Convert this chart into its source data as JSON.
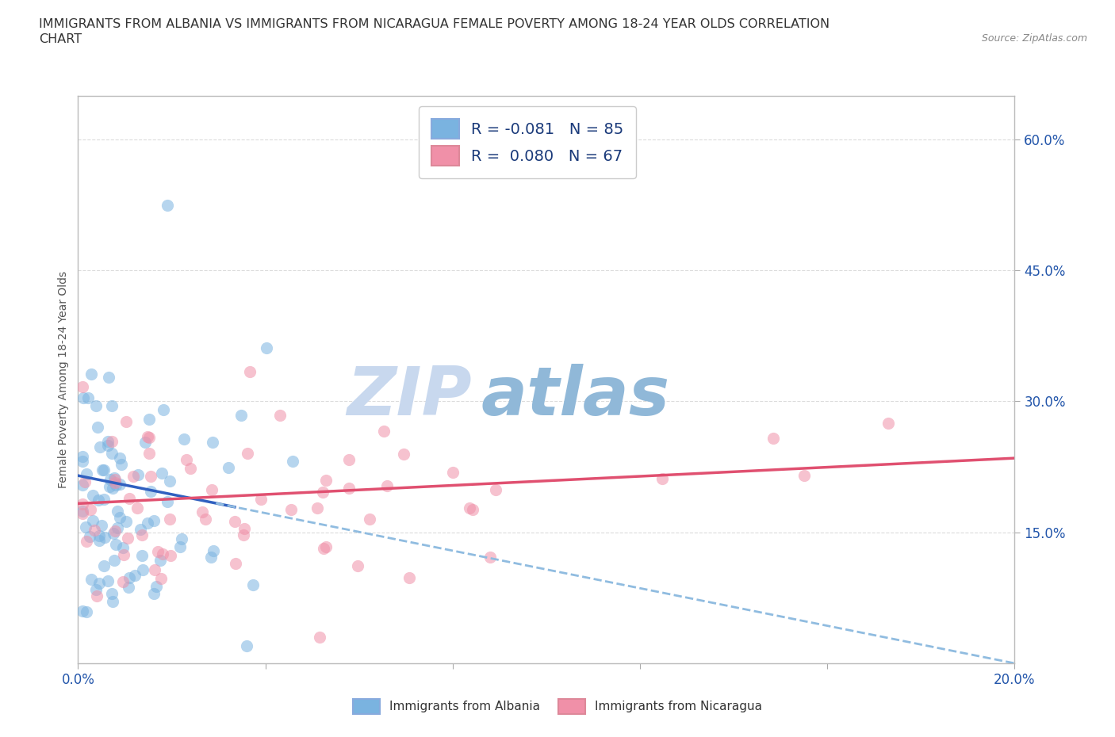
{
  "title_line1": "IMMIGRANTS FROM ALBANIA VS IMMIGRANTS FROM NICARAGUA FEMALE POVERTY AMONG 18-24 YEAR OLDS CORRELATION",
  "title_line2": "CHART",
  "source": "Source: ZipAtlas.com",
  "ylabel": "Female Poverty Among 18-24 Year Olds",
  "xlim": [
    0.0,
    0.2
  ],
  "ylim": [
    0.0,
    0.65
  ],
  "xticks": [
    0.0,
    0.04,
    0.08,
    0.12,
    0.16,
    0.2
  ],
  "yticks_right": [
    0.15,
    0.3,
    0.45,
    0.6
  ],
  "ytick_labels_right": [
    "15.0%",
    "30.0%",
    "45.0%",
    "60.0%"
  ],
  "albania_color": "#7ab3e0",
  "nicaragua_color": "#f090a8",
  "albania_R": -0.081,
  "albania_N": 85,
  "nicaragua_R": 0.08,
  "nicaragua_N": 67,
  "trend_albania_solid_color": "#3060c0",
  "trend_albania_dashed_color": "#90bce0",
  "trend_nicaragua_color": "#e05070",
  "watermark_zip": "ZIP",
  "watermark_atlas": "atlas",
  "watermark_color_zip": "#c8d8ee",
  "watermark_color_atlas": "#90b8d8",
  "legend_label_albania": "R = -0.081   N = 85",
  "legend_label_nicaragua": "R =  0.080   N = 67",
  "background_color": "#ffffff",
  "grid_color": "#cccccc"
}
